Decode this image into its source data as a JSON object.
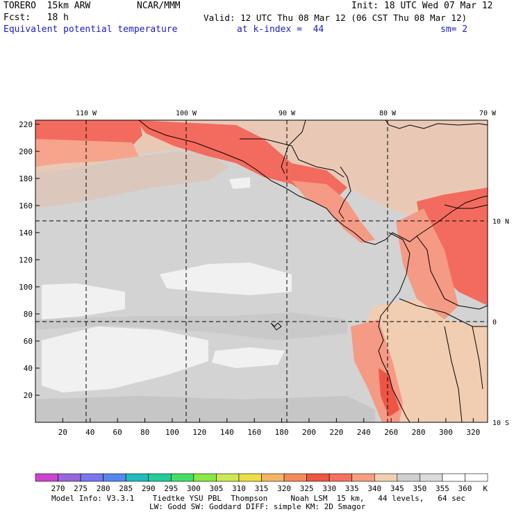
{
  "header": {
    "model_name": "TORERO  15km ARW",
    "center": "NCAR/MMM",
    "init": "Init: 18 UTC Wed 07 Mar 12",
    "fcst": "Fcst:   18 h",
    "valid": "Valid: 12 UTC Thu 08 Mar 12 (06 CST Thu 08 Mar 12)",
    "field": "Equivalent potential temperature",
    "level": "at k-index =  44",
    "smoothing": "sm= 2"
  },
  "map": {
    "top_lon_labels": [
      "110 W",
      "100 W",
      "90 W",
      "80 W",
      "70 W"
    ],
    "right_lat_labels": [
      "10 N",
      "0",
      "10 S"
    ],
    "y_axis_ticks": [
      "220",
      "200",
      "180",
      "160",
      "140",
      "120",
      "100",
      "80",
      "60",
      "40",
      "20"
    ],
    "x_axis_ticks": [
      "20",
      "40",
      "60",
      "80",
      "100",
      "120",
      "140",
      "160",
      "180",
      "200",
      "220",
      "240",
      "260",
      "280",
      "300",
      "320"
    ]
  },
  "colorbar": {
    "labels": [
      "270",
      "275",
      "280",
      "285",
      "290",
      "295",
      "300",
      "305",
      "310",
      "315",
      "320",
      "325",
      "330",
      "335",
      "340",
      "345",
      "350",
      "355",
      "360"
    ],
    "unit": "K",
    "colors": [
      "#cc44cc",
      "#9966dd",
      "#7777ee",
      "#5588ee",
      "#22bbbb",
      "#22cc99",
      "#44dd66",
      "#88e844",
      "#cce855",
      "#eedd44",
      "#f4b566",
      "#f48a5a",
      "#ee5544",
      "#f87060",
      "#f4a080",
      "#f2cfb0",
      "#d0d0d0",
      "#dcdcdc",
      "#ffffff"
    ]
  },
  "footer": {
    "line1": "Model Info: V3.3.1    Tiedtke YSU PBL  Thompson     Noah LSM  15 km,   44 levels,   64 sec",
    "line2": "LW: Godd SW: Goddard DIFF: simple KM: 2D Smagor"
  }
}
